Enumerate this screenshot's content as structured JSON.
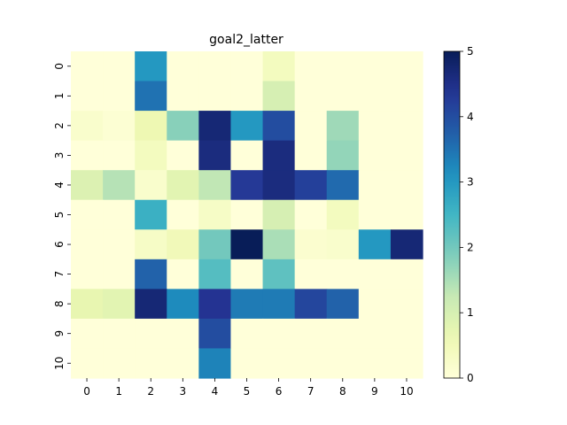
{
  "chart_data": {
    "type": "heatmap",
    "title": "goal2_latter",
    "xlabel": "",
    "ylabel": "",
    "x_labels": [
      "0",
      "1",
      "2",
      "3",
      "4",
      "5",
      "6",
      "7",
      "8",
      "9",
      "10"
    ],
    "y_labels": [
      "0",
      "1",
      "2",
      "3",
      "4",
      "5",
      "6",
      "7",
      "8",
      "9",
      "10"
    ],
    "colormap": "YlGnBu",
    "vmin": 0,
    "vmax": 5,
    "colorbar_ticks": [
      0,
      1,
      2,
      3,
      4,
      5
    ],
    "values": [
      [
        0,
        0,
        3.0,
        0,
        0,
        0,
        0.4,
        0,
        0,
        0,
        0
      ],
      [
        0,
        0,
        3.5,
        0,
        0,
        0,
        1.0,
        0,
        0,
        0,
        0
      ],
      [
        0.2,
        0.1,
        0.6,
        1.8,
        4.7,
        3.0,
        4.0,
        0,
        1.6,
        0,
        0
      ],
      [
        0,
        0,
        0.4,
        0,
        4.6,
        0,
        4.6,
        0,
        1.7,
        0,
        0
      ],
      [
        0.9,
        1.4,
        0.2,
        0.8,
        1.3,
        4.3,
        4.6,
        4.2,
        3.6,
        0,
        0
      ],
      [
        0,
        0,
        2.6,
        0,
        0.3,
        0,
        1.0,
        0,
        0.4,
        0,
        0
      ],
      [
        0,
        0,
        0.3,
        0.5,
        2.0,
        5.0,
        1.5,
        0.15,
        0.2,
        3.0,
        4.7
      ],
      [
        0,
        0,
        3.7,
        0,
        2.3,
        0,
        2.2,
        0,
        0,
        0,
        0
      ],
      [
        0.7,
        0.8,
        4.7,
        3.2,
        4.4,
        3.4,
        3.4,
        4.1,
        3.7,
        0,
        0
      ],
      [
        0,
        0,
        0,
        0,
        4.0,
        0,
        0,
        0,
        0,
        0,
        0
      ],
      [
        0,
        0,
        0,
        0,
        3.3,
        0,
        0,
        0,
        0,
        0,
        0
      ]
    ]
  }
}
